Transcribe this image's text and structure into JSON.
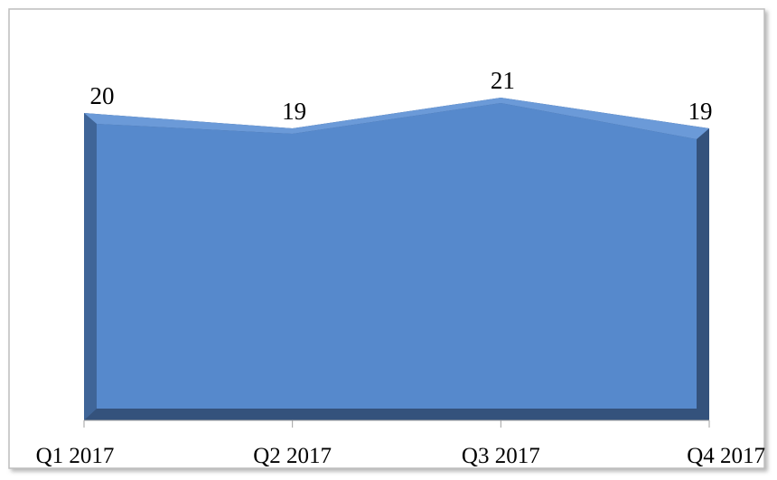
{
  "chart_data": {
    "type": "area",
    "categories": [
      "Q1 2017",
      "Q2 2017",
      "Q3 2017",
      "Q4 2017"
    ],
    "values": [
      20,
      19,
      21,
      19
    ],
    "color": "#5689cc",
    "ylim": [
      0,
      25
    ]
  }
}
